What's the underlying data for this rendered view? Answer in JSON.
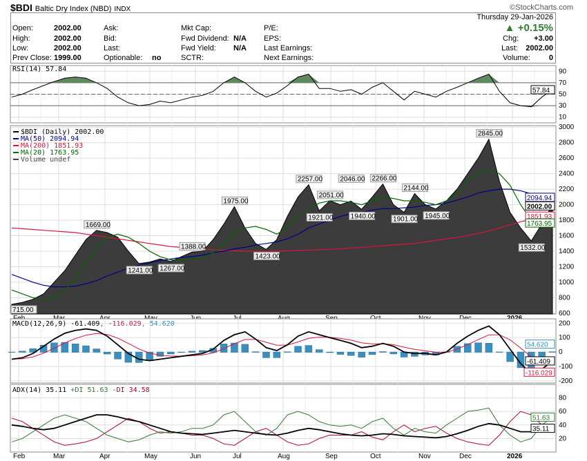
{
  "header": {
    "symbol": "$BDI",
    "name": "Baltic Dry Index (NBD)",
    "exchange": "INDX",
    "watermark": "©StockCharts.com",
    "date": "Thursday  29-Jan-2026",
    "pct_change": "+0.15%",
    "fields": [
      {
        "label": "Open:",
        "value": "2002.00"
      },
      {
        "label": "High:",
        "value": "2002.00"
      },
      {
        "label": "Low:",
        "value": "2002.00"
      },
      {
        "label": "Prev Close:",
        "value": "1999.00"
      },
      {
        "label": "Ask:",
        "value": ""
      },
      {
        "label": "Bid:",
        "value": ""
      },
      {
        "label": "Last:",
        "value": ""
      },
      {
        "label": "Optionable:",
        "value": "no"
      },
      {
        "label": "Mkt Cap:",
        "value": ""
      },
      {
        "label": "Fwd Dividend:",
        "value": "N/A"
      },
      {
        "label": "Fwd Yield:",
        "value": "N/A"
      },
      {
        "label": "SCTR:",
        "value": ""
      },
      {
        "label": "P/E:",
        "value": ""
      },
      {
        "label": "EPS:",
        "value": ""
      },
      {
        "label": "Last Earnings:",
        "value": ""
      },
      {
        "label": "Next Earnings:",
        "value": ""
      },
      {
        "label": "Chg:",
        "value": "+3.00"
      },
      {
        "label": "Last:",
        "value": "2002.00"
      },
      {
        "label": "Volume:",
        "value": "0"
      }
    ]
  },
  "colors": {
    "area": "#3c3c3c",
    "ma50": "#00008b",
    "ma200": "#dc143c",
    "ma20": "#006400",
    "macd_hist": "#3a8fc0",
    "pdi": "#2e7d32",
    "mdi": "#b0003a",
    "rsi_over": "#5f8a5f",
    "rsi_under": "#8a5f6a"
  },
  "chart_data": {
    "type": "line",
    "x_labels": [
      "Feb",
      "Mar",
      "Apr",
      "May",
      "Jun",
      "Jul",
      "Aug",
      "Sep",
      "Oct",
      "Nov",
      "Dec",
      "2026"
    ],
    "price": {
      "legend": "$BDI (Daily) 2002.00",
      "ylim": [
        600,
        3000
      ],
      "ticks": [
        600,
        800,
        1000,
        1200,
        1400,
        1600,
        1800,
        2000,
        2200,
        2400,
        2600,
        2800,
        3000
      ],
      "values": [
        715,
        740,
        780,
        850,
        1000,
        1150,
        1350,
        1550,
        1669,
        1640,
        1580,
        1400,
        1241,
        1260,
        1300,
        1267,
        1330,
        1388,
        1400,
        1550,
        1750,
        1975,
        1700,
        1500,
        1423,
        1550,
        1850,
        2100,
        2257,
        1921,
        2051,
        2000,
        2046,
        1940,
        2100,
        2266,
        2000,
        1901,
        2144,
        2000,
        1945,
        2050,
        2200,
        2400,
        2600,
        2845,
        2300,
        1900,
        1700,
        1532,
        1750,
        2002
      ],
      "ma50": {
        "legend": "MA(50) 2094.94",
        "last": "2094.94",
        "values": [
          1100,
          1050,
          1000,
          960,
          940,
          940,
          950,
          980,
          1020,
          1080,
          1130,
          1180,
          1220,
          1250,
          1280,
          1300,
          1320,
          1330,
          1350,
          1380,
          1400,
          1430,
          1450,
          1480,
          1500,
          1520,
          1560,
          1620,
          1700,
          1750,
          1800,
          1850,
          1880,
          1900,
          1930,
          1950,
          1950,
          1960,
          1970,
          1990,
          2000,
          2020,
          2060,
          2100,
          2150,
          2180,
          2200,
          2200,
          2180,
          2140,
          2110,
          2095
        ]
      },
      "ma200": {
        "legend": "MA(200) 1851.93",
        "last": "1851.93",
        "values": [
          1700,
          1690,
          1680,
          1670,
          1660,
          1650,
          1640,
          1620,
          1600,
          1580,
          1560,
          1540,
          1520,
          1500,
          1480,
          1460,
          1450,
          1440,
          1430,
          1420,
          1410,
          1405,
          1400,
          1400,
          1400,
          1400,
          1405,
          1410,
          1415,
          1420,
          1425,
          1430,
          1440,
          1450,
          1460,
          1470,
          1480,
          1490,
          1500,
          1520,
          1540,
          1560,
          1580,
          1600,
          1630,
          1660,
          1700,
          1740,
          1780,
          1810,
          1840,
          1852
        ]
      },
      "ma20": {
        "legend": "MA(20) 1763.95",
        "last": "1763.95",
        "values": [
          900,
          850,
          800,
          780,
          800,
          900,
          1050,
          1250,
          1450,
          1580,
          1620,
          1580,
          1500,
          1400,
          1330,
          1290,
          1280,
          1300,
          1320,
          1380,
          1500,
          1650,
          1700,
          1720,
          1680,
          1620,
          1700,
          1850,
          1950,
          2020,
          2050,
          2050,
          2030,
          2000,
          2050,
          2100,
          2080,
          2050,
          2050,
          2030,
          2000,
          2050,
          2150,
          2300,
          2420,
          2450,
          2400,
          2250,
          2000,
          1800,
          1720,
          1764
        ]
      },
      "volume_legend": "Volume undef",
      "last": "2002.00",
      "annotations": [
        {
          "i": 0,
          "t": "715.00"
        },
        {
          "i": 8,
          "t": "1669.00"
        },
        {
          "i": 12,
          "t": "1241.00"
        },
        {
          "i": 15,
          "t": "1267.00"
        },
        {
          "i": 17,
          "t": "1388.00"
        },
        {
          "i": 21,
          "t": "1975.00"
        },
        {
          "i": 24,
          "t": "1423.00"
        },
        {
          "i": 28,
          "t": "2257.00"
        },
        {
          "i": 29,
          "t": "1921.00"
        },
        {
          "i": 30,
          "t": "2051.00"
        },
        {
          "i": 32,
          "t": "2046.00"
        },
        {
          "i": 33,
          "t": "1940.00"
        },
        {
          "i": 35,
          "t": "2266.00"
        },
        {
          "i": 37,
          "t": "1901.00"
        },
        {
          "i": 38,
          "t": "2144.00"
        },
        {
          "i": 40,
          "t": "1945.00"
        },
        {
          "i": 45,
          "t": "2845.00"
        },
        {
          "i": 49,
          "t": "1532.00"
        }
      ]
    },
    "rsi": {
      "legend": "RSI(14) 57.84",
      "last": "57.84",
      "ticks": [
        10,
        30,
        50,
        70,
        90
      ],
      "ylim": [
        0,
        100
      ],
      "values": [
        45,
        50,
        58,
        65,
        72,
        78,
        80,
        78,
        70,
        60,
        45,
        35,
        30,
        32,
        38,
        35,
        40,
        45,
        48,
        55,
        70,
        80,
        70,
        55,
        45,
        52,
        65,
        80,
        85,
        60,
        60,
        55,
        58,
        50,
        62,
        70,
        55,
        40,
        55,
        50,
        45,
        55,
        62,
        70,
        78,
        85,
        55,
        35,
        30,
        28,
        45,
        57.84
      ]
    },
    "macd": {
      "legend_macd": "MACD(12,26,9) -61.409",
      "legend_signal": ", -116.029",
      "legend_hist": ", 54.620",
      "last_macd": "-61.409",
      "last_signal": "-116.029",
      "last_hist": "54.620",
      "ticks": [
        -200,
        -100,
        0,
        100,
        200
      ],
      "ylim": [
        -200,
        200
      ],
      "macd": [
        -50,
        -40,
        -10,
        40,
        90,
        130,
        150,
        160,
        150,
        110,
        50,
        -10,
        -50,
        -60,
        -50,
        -40,
        -30,
        -20,
        -10,
        20,
        80,
        120,
        140,
        90,
        30,
        10,
        50,
        110,
        140,
        120,
        100,
        80,
        60,
        30,
        40,
        60,
        40,
        0,
        -10,
        -10,
        -20,
        0,
        60,
        110,
        150,
        180,
        120,
        20,
        -80,
        -150,
        -120,
        -61.409
      ]
    },
    "adx": {
      "legend_adx": "ADX(14) 35.11",
      "legend_pdi": " +DI 51.63",
      "legend_mdi": " -DI 34.58",
      "last_adx": "35.11",
      "last_pdi": "51.63",
      "ticks": [
        20,
        40,
        60,
        80
      ],
      "ylim": [
        0,
        100
      ],
      "adx": [
        40,
        38,
        35,
        33,
        35,
        40,
        45,
        50,
        55,
        55,
        52,
        48,
        45,
        40,
        35,
        30,
        28,
        27,
        26,
        28,
        30,
        32,
        30,
        28,
        26,
        25,
        28,
        32,
        35,
        33,
        30,
        27,
        25,
        24,
        25,
        27,
        26,
        24,
        23,
        22,
        21,
        23,
        27,
        32,
        38,
        42,
        40,
        35,
        30,
        30,
        33,
        35.11
      ],
      "pdi": [
        15,
        20,
        30,
        40,
        50,
        55,
        50,
        45,
        35,
        25,
        20,
        15,
        18,
        25,
        30,
        28,
        30,
        35,
        35,
        40,
        55,
        60,
        45,
        30,
        25,
        35,
        55,
        60,
        55,
        45,
        40,
        38,
        40,
        35,
        45,
        50,
        35,
        25,
        35,
        30,
        28,
        40,
        50,
        60,
        62,
        65,
        40,
        25,
        15,
        20,
        40,
        51.63
      ],
      "mdi": [
        50,
        45,
        35,
        25,
        15,
        10,
        12,
        15,
        20,
        30,
        40,
        50,
        45,
        35,
        28,
        30,
        28,
        25,
        25,
        20,
        12,
        10,
        20,
        30,
        35,
        25,
        15,
        10,
        12,
        20,
        25,
        25,
        25,
        30,
        22,
        18,
        30,
        40,
        30,
        35,
        38,
        28,
        20,
        15,
        12,
        10,
        25,
        45,
        60,
        55,
        40,
        34.58
      ]
    }
  }
}
